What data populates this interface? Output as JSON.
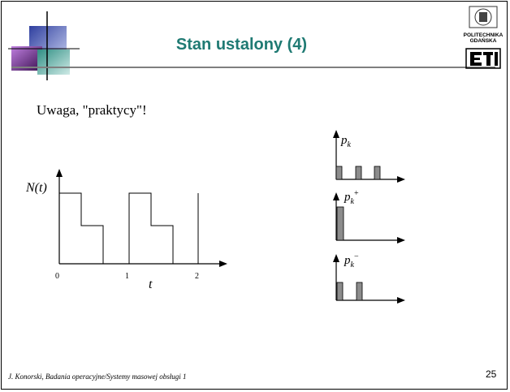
{
  "slide": {
    "title": "Stan ustalony (4)",
    "note": "Uwaga, \"praktycy\"!",
    "footer": "J. Konorski, Badania operacyjne/Systemy masowej obsługi 1",
    "page_number": "25"
  },
  "logo": {
    "line1": "POLITECHNIKA",
    "line2": "GDAŃSKA",
    "mark": "ETI"
  },
  "graph_main": {
    "y_label": "N(t)",
    "x_label": "t",
    "ticks": [
      "0",
      "1",
      "2"
    ]
  },
  "graph_pk": {
    "label": "p",
    "sub": "k",
    "sup": ""
  },
  "graph_pk_plus": {
    "label": "p",
    "sub": "k",
    "sup": "+"
  },
  "graph_pk_minus": {
    "label": "p",
    "sub": "k",
    "sup": "−"
  },
  "colors": {
    "title": "#1f7a73",
    "bar_fill": "#8c8c8c",
    "deco_blue": "#4a5fbf",
    "deco_purple": "#7a3f9b",
    "deco_teal": "#3f9a8f"
  }
}
